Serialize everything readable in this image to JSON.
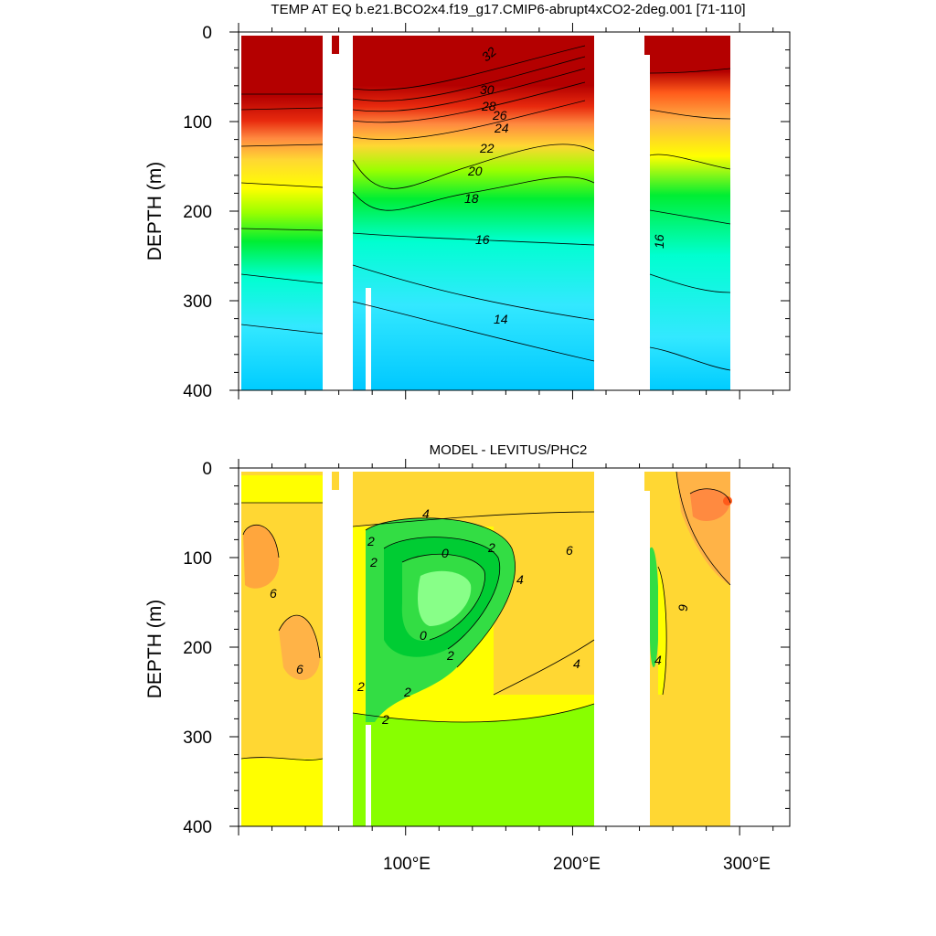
{
  "chart_data": [
    {
      "type": "heatmap",
      "title": "TEMP AT EQ b.e21.BCO2x4.f19_g17.CMIP6-abrupt4xCO2-2deg.001 [71-110]",
      "ylabel": "DEPTH (m)",
      "xlabel": "",
      "ylim": [
        400,
        0
      ],
      "xlim": [
        0,
        320
      ],
      "y_ticks": [
        "0",
        "100",
        "200",
        "300",
        "400"
      ],
      "x_ticks": [],
      "contour_labels": [
        "32",
        "30",
        "28",
        "26",
        "24",
        "22",
        "20",
        "18",
        "16",
        "14",
        "16"
      ],
      "field": "temperature",
      "land_gaps_lon": [
        [
          49,
          57
        ],
        [
          60,
          67
        ],
        [
          210,
          240
        ],
        [
          290,
          320
        ]
      ],
      "palette": [
        "#00c8ff",
        "#33e8ff",
        "#00ffd0",
        "#00ff99",
        "#00ee33",
        "#99ff00",
        "#ffff00",
        "#ffd733",
        "#ffb347",
        "#ff8a40",
        "#ff5a1a",
        "#e82a0e",
        "#b40000"
      ]
    },
    {
      "type": "heatmap",
      "title": "MODEL - LEVITUS/PHC2",
      "ylabel": "DEPTH (m)",
      "xlabel": "",
      "ylim": [
        400,
        0
      ],
      "xlim": [
        0,
        320
      ],
      "y_ticks": [
        "0",
        "100",
        "200",
        "300",
        "400"
      ],
      "x_ticks": [
        "100°E",
        "200°E",
        "300°E"
      ],
      "contour_labels": [
        "4",
        "2",
        "0",
        "2",
        "4",
        "6",
        "6",
        "6",
        "0",
        "2",
        "2",
        "2",
        "4",
        "2",
        "4",
        "9",
        "2"
      ],
      "field": "temperature difference",
      "land_gaps_lon": [
        [
          49,
          57
        ],
        [
          60,
          67
        ],
        [
          210,
          240
        ],
        [
          290,
          320
        ]
      ],
      "palette": [
        "#00cc33",
        "#33dd44",
        "#88ff00",
        "#ffff00",
        "#ffd733",
        "#ffb347",
        "#ff8a40",
        "#ff5a1a"
      ]
    }
  ]
}
